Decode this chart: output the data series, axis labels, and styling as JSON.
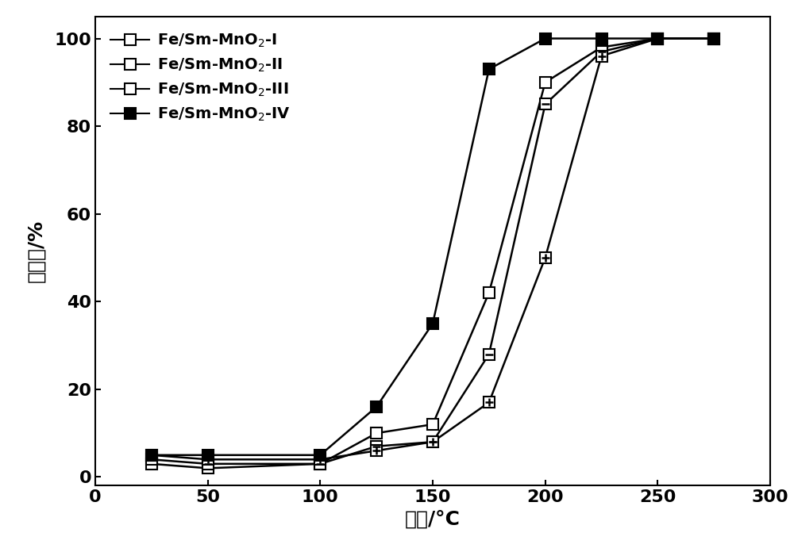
{
  "series": [
    {
      "label": "Fe/Sm-MnO$_2$-I",
      "x": [
        25,
        50,
        100,
        125,
        150,
        175,
        200,
        225,
        250,
        275
      ],
      "y": [
        3,
        2,
        3,
        10,
        12,
        42,
        90,
        98,
        100,
        100
      ],
      "marker_type": "open_square",
      "color": "black"
    },
    {
      "label": "Fe/Sm-MnO$_2$-II",
      "x": [
        25,
        50,
        100,
        125,
        150,
        175,
        200,
        225,
        250,
        275
      ],
      "y": [
        4,
        3,
        3,
        7,
        8,
        28,
        85,
        97,
        100,
        100
      ],
      "marker_type": "hline_square",
      "color": "black"
    },
    {
      "label": "Fe/Sm-MnO$_2$-III",
      "x": [
        25,
        50,
        100,
        125,
        150,
        175,
        200,
        225,
        250,
        275
      ],
      "y": [
        5,
        4,
        4,
        6,
        8,
        17,
        50,
        96,
        100,
        100
      ],
      "marker_type": "cross_square",
      "color": "black"
    },
    {
      "label": "Fe/Sm-MnO$_2$-IV",
      "x": [
        25,
        50,
        100,
        125,
        150,
        175,
        200,
        225,
        250,
        275
      ],
      "y": [
        5,
        5,
        5,
        16,
        35,
        93,
        100,
        100,
        100,
        100
      ],
      "marker_type": "filled_square",
      "color": "black"
    }
  ],
  "xlabel": "温度/°C",
  "ylabel": "转化率/%",
  "xlim": [
    0,
    300
  ],
  "ylim": [
    -2,
    105
  ],
  "xticks": [
    0,
    50,
    100,
    150,
    200,
    250,
    300
  ],
  "yticks": [
    0,
    20,
    40,
    60,
    80,
    100
  ],
  "xlabel_fontsize": 18,
  "ylabel_fontsize": 18,
  "tick_fontsize": 16,
  "legend_fontsize": 14,
  "linewidth": 1.8,
  "markersize": 10
}
